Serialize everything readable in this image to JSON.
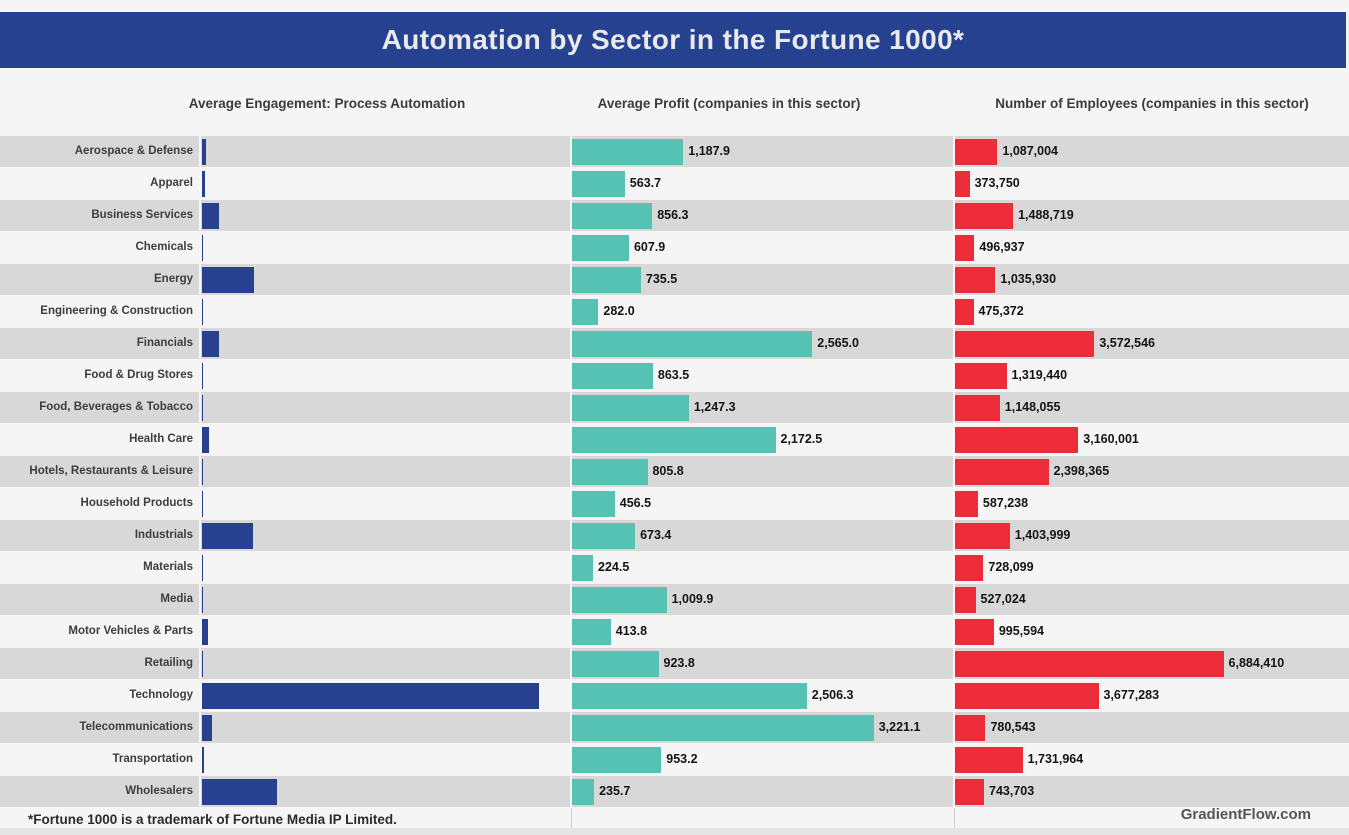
{
  "title": "Automation by Sector in the Fortune 1000*",
  "footnote": "*Fortune 1000 is a trademark of Fortune Media IP Limited.",
  "credit": "GradientFlow.com",
  "columns": {
    "engagement_header": "Average Engagement: Process Automation",
    "profit_header": "Average Profit (companies in this sector)",
    "employees_header": "Number of Employees (companies in this sector)"
  },
  "colors": {
    "title_bar": "#26418F",
    "engagement_bar": "#27418F",
    "profit_bar": "#55C2B3",
    "employees_bar": "#EC2C38",
    "stripe_dark": "#D8D8D8",
    "stripe_light": "#F5F5F5"
  },
  "chart_data": {
    "type": "bar",
    "orientation": "horizontal",
    "title": "Automation by Sector in the Fortune 1000*",
    "categories": [
      "Aerospace & Defense",
      "Apparel",
      "Business Services",
      "Chemicals",
      "Energy",
      "Engineering & Construction",
      "Financials",
      "Food & Drug Stores",
      "Food, Beverages & Tobacco",
      "Health Care",
      "Hotels, Restaurants & Leisure",
      "Household Products",
      "Industrials",
      "Materials",
      "Media",
      "Motor Vehicles & Parts",
      "Retailing",
      "Technology",
      "Telecommunications",
      "Transportation",
      "Wholesalers"
    ],
    "series": [
      {
        "name": "Average Engagement: Process Automation",
        "note": "bars unlabeled in figure; values estimated relative to Technology = 1.0",
        "values": [
          0.013,
          0.01,
          0.05,
          0.003,
          0.153,
          0.004,
          0.05,
          0.001,
          0.003,
          0.022,
          0.001,
          0.003,
          0.15,
          0.001,
          0.003,
          0.019,
          0.001,
          1.0,
          0.03,
          0.006,
          0.223
        ],
        "axis_max": 1.05,
        "data_labels": false
      },
      {
        "name": "Average Profit (companies in this sector)",
        "values": [
          1187.9,
          563.7,
          856.3,
          607.9,
          735.5,
          282.0,
          2565.0,
          863.5,
          1247.3,
          2172.5,
          805.8,
          456.5,
          673.4,
          224.5,
          1009.9,
          413.8,
          923.8,
          2506.3,
          3221.1,
          953.2,
          235.7
        ],
        "labels": [
          "1,187.9",
          "563.7",
          "856.3",
          "607.9",
          "735.5",
          "282.0",
          "2,565.0",
          "863.5",
          "1,247.3",
          "2,172.5",
          "805.8",
          "456.5",
          "673.4",
          "224.5",
          "1,009.9",
          "413.8",
          "923.8",
          "2,506.3",
          "3,221.1",
          "953.2",
          "235.7"
        ],
        "axis_max": 3950,
        "data_labels": true
      },
      {
        "name": "Number of Employees (companies in this sector)",
        "values": [
          1087004,
          373750,
          1488719,
          496937,
          1035930,
          475372,
          3572546,
          1319440,
          1148055,
          3160001,
          2398365,
          587238,
          1403999,
          728099,
          527024,
          995594,
          6884410,
          3677283,
          780543,
          1731964,
          743703
        ],
        "labels": [
          "1,087,004",
          "373,750",
          "1,488,719",
          "496,937",
          "1,035,930",
          "475,372",
          "3,572,546",
          "1,319,440",
          "1,148,055",
          "3,160,001",
          "2,398,365",
          "587,238",
          "1,403,999",
          "728,099",
          "527,024",
          "995,594",
          "6,884,410",
          "3,677,283",
          "780,543",
          "1,731,964",
          "743,703"
        ],
        "axis_max": 10100000,
        "data_labels": true
      }
    ],
    "legend": "none",
    "grid": false,
    "row_striping": true
  }
}
